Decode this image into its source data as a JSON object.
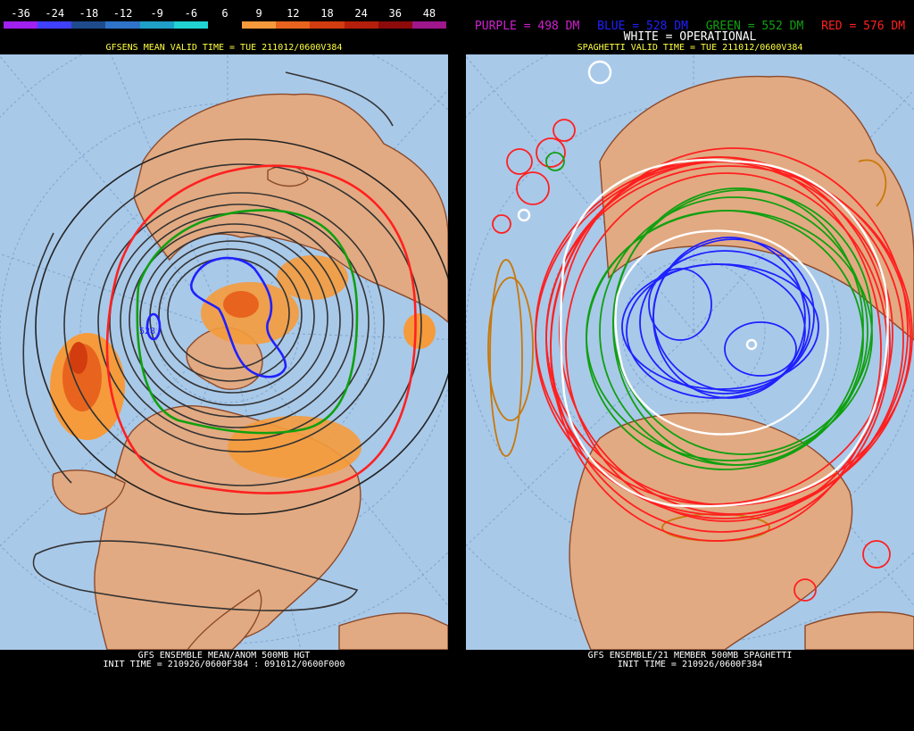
{
  "left": {
    "colorbar": {
      "ticks": [
        "-36",
        "-24",
        "-18",
        "-12",
        "-9",
        "-6",
        "6",
        "9",
        "12",
        "18",
        "24",
        "36",
        "48"
      ],
      "colors": [
        "#a020f0",
        "#4040ff",
        "#1e4b8c",
        "#2f73c8",
        "#1ea0c8",
        "#20d2d2",
        "#000000",
        "#f59b3c",
        "#e8641e",
        "#d23c0f",
        "#b41e0a",
        "#8c0a0a",
        "#a0168c"
      ]
    },
    "header": "GFSENS MEAN VALID TIME = TUE 211012/0600V384",
    "footer_line1": "GFS ENSEMBLE MEAN/ANOM 500MB HGT",
    "footer_line2": "INIT TIME = 210926/0600F384 : 091012/0600F000",
    "contour_label": "528"
  },
  "right": {
    "legend": {
      "purple": "PURPLE = 498 DM",
      "blue": "BLUE = 528 DM",
      "green": "GREEN = 552 DM",
      "red": "RED = 576 DM"
    },
    "operational": "WHITE = OPERATIONAL",
    "header": "SPAGHETTI VALID TIME = TUE 211012/0600V384",
    "footer_line1": "GFS ENSEMBLE/21 MEMBER 500MB SPAGHETTI",
    "footer_line2": "INIT TIME = 210926/0600F384"
  },
  "colors": {
    "ocean": "#a9c9e9",
    "land": "#e2aa82",
    "border": "#8c4a2a",
    "header_yellow": "#ffff40",
    "purple": "#d020d0",
    "blue": "#2020ff",
    "green": "#10a010",
    "red": "#ff2020"
  }
}
